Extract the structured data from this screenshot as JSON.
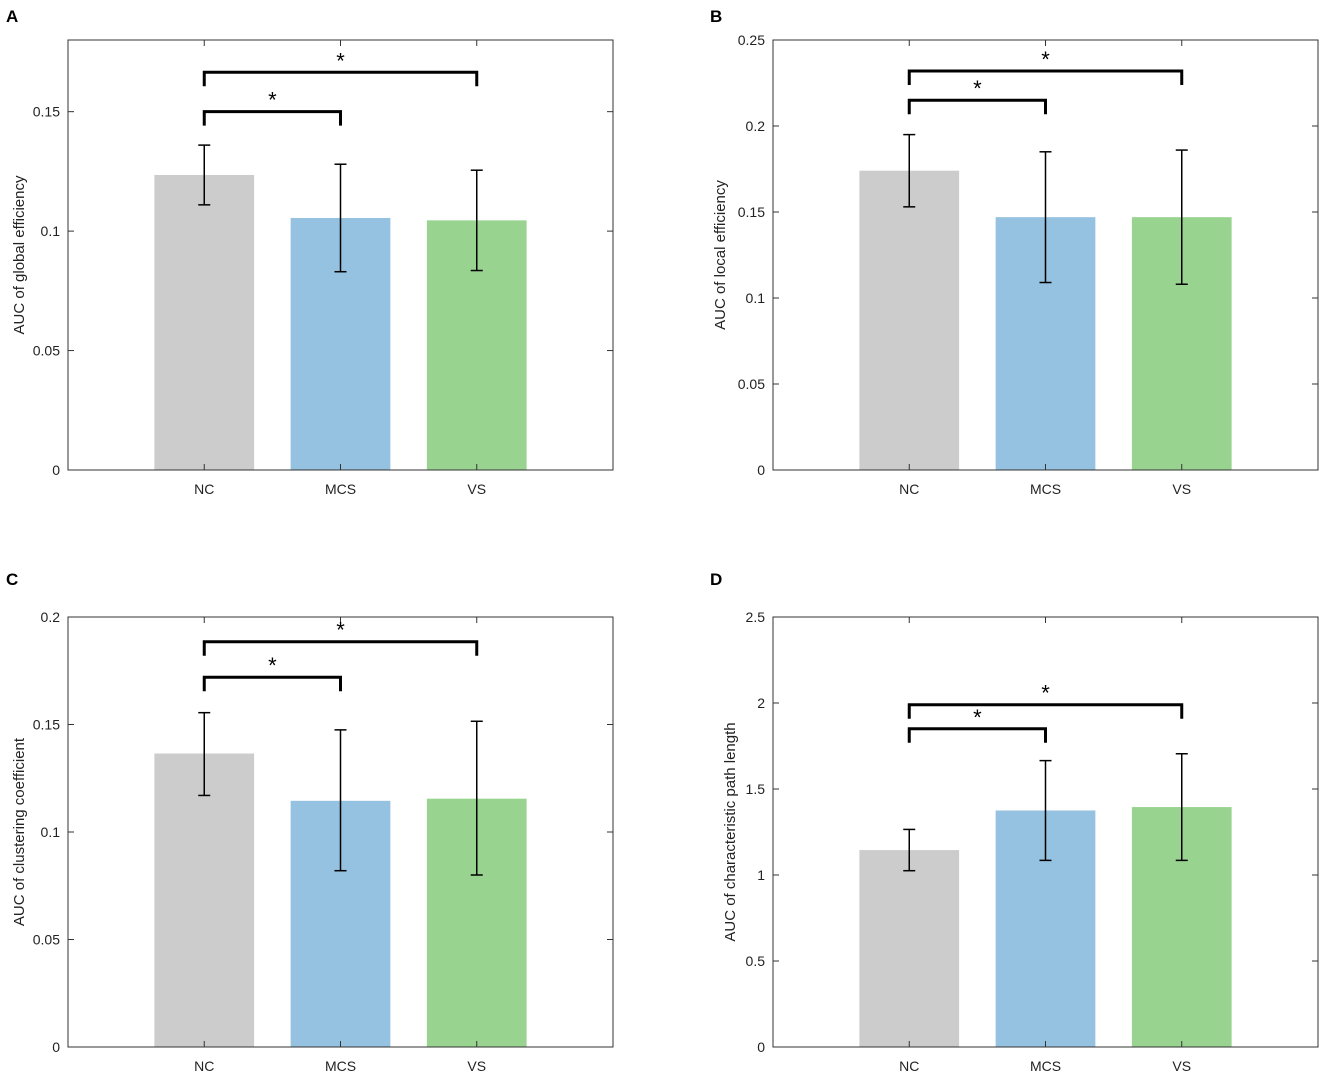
{
  "chart_data": [
    {
      "panel_label": "A",
      "type": "bar",
      "categories": [
        "NC",
        "MCS",
        "VS"
      ],
      "values": [
        0.1235,
        0.1055,
        0.1045
      ],
      "error_low": [
        0.111,
        0.083,
        0.0835
      ],
      "error_high": [
        0.136,
        0.128,
        0.1255
      ],
      "ylabel": "AUC of global efficiency",
      "xlabel": "",
      "ylim": [
        0,
        0.18
      ],
      "yticks": [
        0,
        0.05,
        0.1,
        0.15
      ],
      "ytick_labels": [
        "0",
        "0.05",
        "0.1",
        "0.15"
      ],
      "significance": [
        {
          "from": 0,
          "to": 1,
          "level": 0.15,
          "label": "*"
        },
        {
          "from": 0,
          "to": 2,
          "level": 0.1665,
          "label": "*"
        }
      ]
    },
    {
      "panel_label": "B",
      "type": "bar",
      "categories": [
        "NC",
        "MCS",
        "VS"
      ],
      "values": [
        0.174,
        0.147,
        0.147
      ],
      "error_low": [
        0.153,
        0.109,
        0.108
      ],
      "error_high": [
        0.195,
        0.185,
        0.186
      ],
      "ylabel": "AUC of local efficiency",
      "xlabel": "",
      "ylim": [
        0,
        0.25
      ],
      "yticks": [
        0,
        0.05,
        0.1,
        0.15,
        0.2,
        0.25
      ],
      "ytick_labels": [
        "0",
        "0.05",
        "0.1",
        "0.15",
        "0.2",
        "0.25"
      ],
      "significance": [
        {
          "from": 0,
          "to": 1,
          "level": 0.215,
          "label": "*"
        },
        {
          "from": 0,
          "to": 2,
          "level": 0.232,
          "label": "*"
        }
      ]
    },
    {
      "panel_label": "C",
      "type": "bar",
      "categories": [
        "NC",
        "MCS",
        "VS"
      ],
      "values": [
        0.1365,
        0.1145,
        0.1155
      ],
      "error_low": [
        0.117,
        0.082,
        0.08
      ],
      "error_high": [
        0.1555,
        0.1475,
        0.1515
      ],
      "ylabel": "AUC of clustering coefficient",
      "xlabel": "",
      "ylim": [
        0,
        0.2
      ],
      "yticks": [
        0,
        0.05,
        0.1,
        0.15,
        0.2
      ],
      "ytick_labels": [
        "0",
        "0.05",
        "0.1",
        "0.15",
        "0.2"
      ],
      "significance": [
        {
          "from": 0,
          "to": 1,
          "level": 0.172,
          "label": "*"
        },
        {
          "from": 0,
          "to": 2,
          "level": 0.1885,
          "label": "*"
        }
      ]
    },
    {
      "panel_label": "D",
      "type": "bar",
      "categories": [
        "NC",
        "MCS",
        "VS"
      ],
      "values": [
        1.145,
        1.375,
        1.395
      ],
      "error_low": [
        1.025,
        1.085,
        1.085
      ],
      "error_high": [
        1.265,
        1.665,
        1.705
      ],
      "ylabel": "AUC of characteristic path length",
      "xlabel": "",
      "ylim": [
        0,
        2.5
      ],
      "yticks": [
        0,
        0.5,
        1,
        1.5,
        2,
        2.5
      ],
      "ytick_labels": [
        "0",
        "0.5",
        "1",
        "1.5",
        "2",
        "2.5"
      ],
      "significance": [
        {
          "from": 0,
          "to": 1,
          "level": 1.85,
          "label": "*"
        },
        {
          "from": 0,
          "to": 2,
          "level": 1.99,
          "label": "*"
        }
      ]
    }
  ],
  "colors": {
    "bars": [
      "#cccccc",
      "#95c2e0",
      "#98d490"
    ],
    "axis": "#333333",
    "error": "#000000"
  }
}
